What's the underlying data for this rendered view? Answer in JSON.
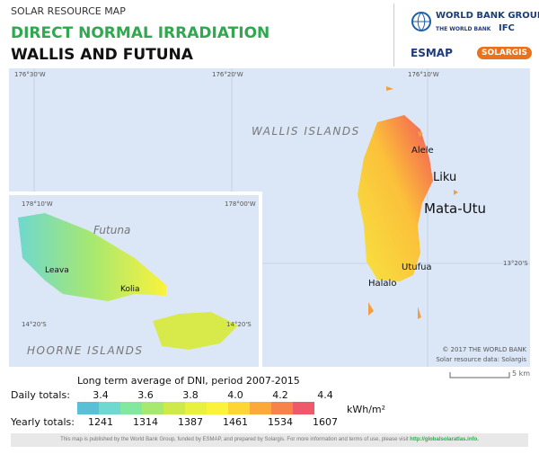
{
  "header": {
    "subtitle": "SOLAR RESOURCE MAP",
    "title": "DIRECT NORMAL IRRADIATION",
    "region": "WALLIS AND FUTUNA"
  },
  "logos": {
    "wbg": "WORLD BANK GROUP",
    "wb": "THE WORLD BANK",
    "ifc": "IFC",
    "esmap": "ESMAP",
    "solargis": "SOLARGIS"
  },
  "map": {
    "coords_top": [
      "176°30'W",
      "176°20'W",
      "176°10'W"
    ],
    "coord_right": "13°20'S",
    "islands_label": "WALLIS ISLANDS",
    "cities": [
      "Alele",
      "Liku",
      "Mata-Utu",
      "Utufua",
      "Halalo"
    ],
    "copyright": "© 2017 THE WORLD BANK",
    "source": "Solar resource data: Solargis",
    "scale": "5 km",
    "inset": {
      "coords_top": [
        "178°10'W",
        "178°00'W"
      ],
      "coords_left": "14°20'S",
      "coords_right": "14°20'S",
      "label_futuna": "Futuna",
      "label_hoorne": "HOORNE ISLANDS",
      "cities": [
        "Leava",
        "Kolia"
      ]
    }
  },
  "legend": {
    "title": "Long term average of DNI, period 2007-2015",
    "daily_label": "Daily totals:",
    "yearly_label": "Yearly totals:",
    "daily": [
      "3.4",
      "3.6",
      "3.8",
      "4.0",
      "4.2",
      "4.4"
    ],
    "yearly": [
      "1241",
      "1314",
      "1387",
      "1461",
      "1534",
      "1607"
    ],
    "unit": "kWh/m²",
    "colors": [
      "#5ac0d6",
      "#6fd8cf",
      "#82e8a0",
      "#a7e870",
      "#cdea4a",
      "#e8f040",
      "#fbf23c",
      "#fdd636",
      "#fbaa3a",
      "#f7824a",
      "#ef5a6a"
    ]
  },
  "footer": {
    "text": "This map is published by the World Bank Group, funded by ESMAP, and prepared by Solargis. For more information and terms of use, please visit",
    "link": "http://globalsolaratlas.info."
  }
}
